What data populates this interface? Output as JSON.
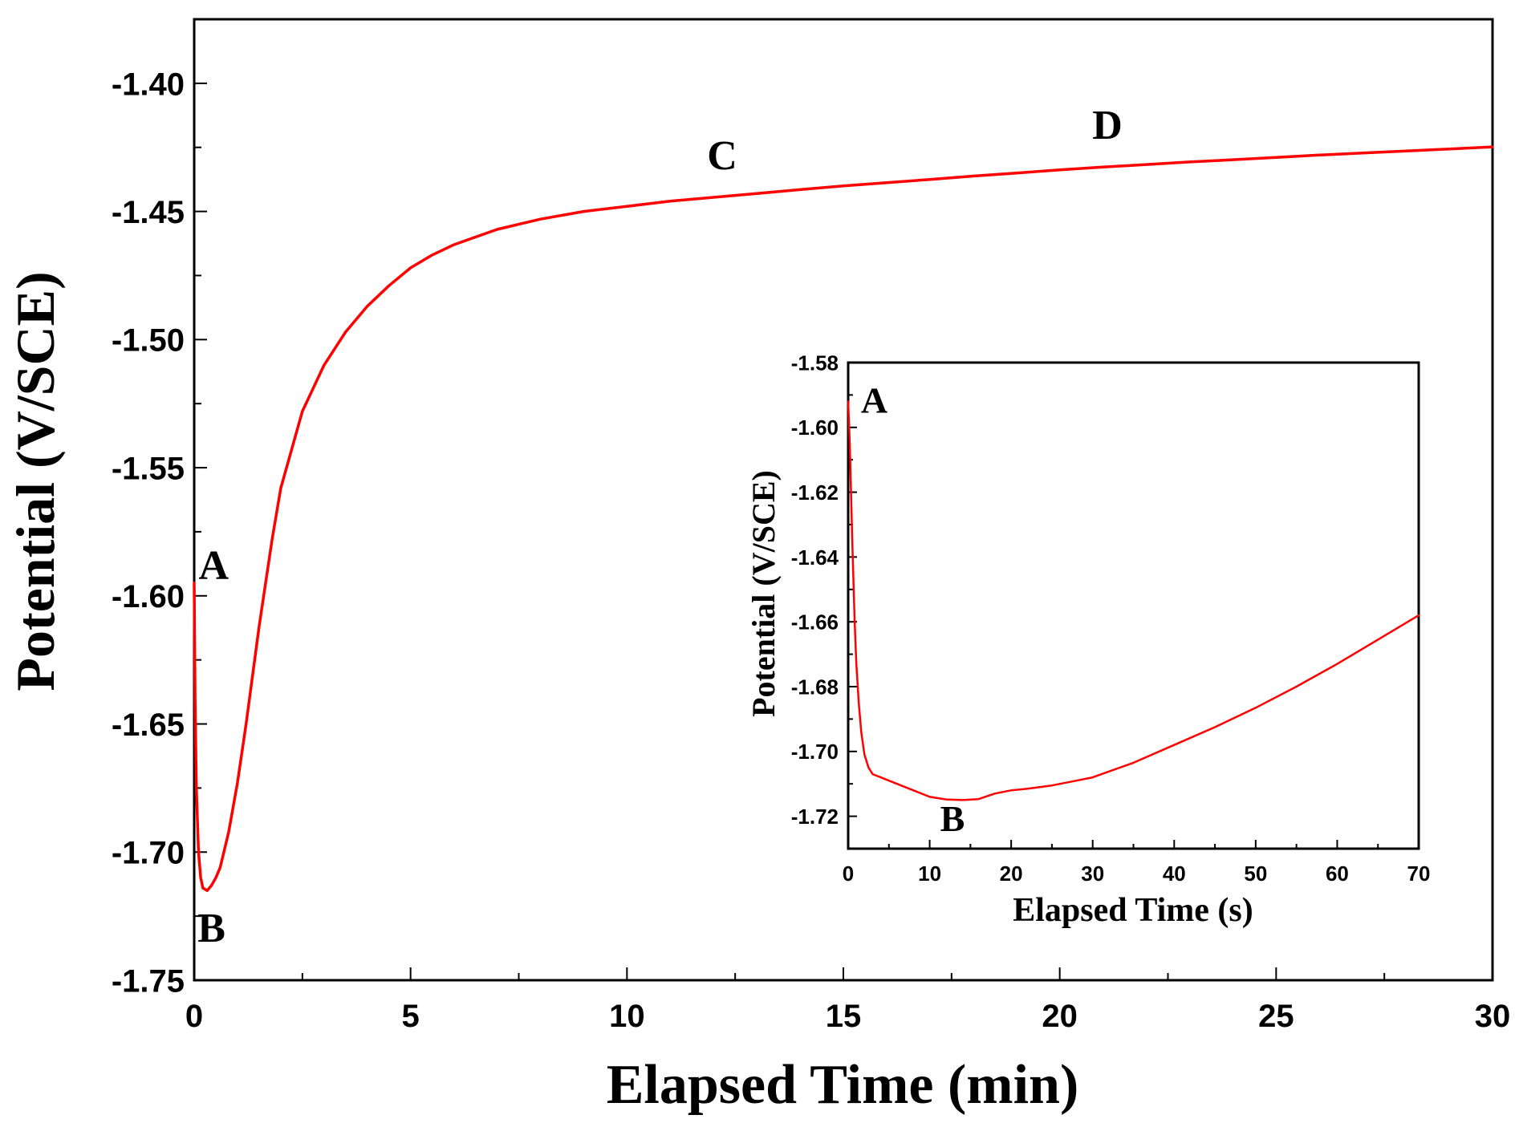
{
  "chart_data": [
    {
      "type": "line",
      "title": "",
      "xlabel": "Elapsed Time (min)",
      "ylabel": "Potential (V/SCE)",
      "xlim": [
        0,
        30
      ],
      "ylim": [
        -1.75,
        -1.375
      ],
      "x_ticks": [
        0,
        5,
        10,
        15,
        20,
        25,
        30
      ],
      "y_ticks": [
        -1.75,
        -1.7,
        -1.65,
        -1.6,
        -1.55,
        -1.5,
        -1.45,
        -1.4
      ],
      "x_tick_labels": [
        "0",
        "5",
        "10",
        "15",
        "20",
        "25",
        "30"
      ],
      "y_tick_labels": [
        "-1.75",
        "-1.70",
        "-1.65",
        "-1.60",
        "-1.55",
        "-1.50",
        "-1.45",
        "-1.40"
      ],
      "color": "#ff0000",
      "series": [
        {
          "name": "potential",
          "x": [
            0,
            0.02,
            0.05,
            0.1,
            0.15,
            0.2,
            0.3,
            0.4,
            0.5,
            0.6,
            0.8,
            1.0,
            1.2,
            1.5,
            1.8,
            2.0,
            2.5,
            3.0,
            3.5,
            4.0,
            4.5,
            5.0,
            5.5,
            6.0,
            6.5,
            7.0,
            7.5,
            8.0,
            9.0,
            10,
            11,
            12,
            13,
            14,
            15,
            16,
            17,
            18,
            19,
            20,
            21,
            22,
            23,
            24,
            25,
            26,
            27,
            28,
            29,
            30
          ],
          "y": [
            -1.595,
            -1.64,
            -1.675,
            -1.7,
            -1.71,
            -1.714,
            -1.715,
            -1.713,
            -1.71,
            -1.706,
            -1.692,
            -1.673,
            -1.65,
            -1.612,
            -1.578,
            -1.558,
            -1.528,
            -1.51,
            -1.497,
            -1.487,
            -1.479,
            -1.472,
            -1.467,
            -1.463,
            -1.46,
            -1.457,
            -1.455,
            -1.453,
            -1.45,
            -1.448,
            -1.446,
            -1.4445,
            -1.443,
            -1.4415,
            -1.44,
            -1.4388,
            -1.4375,
            -1.4362,
            -1.435,
            -1.4338,
            -1.4327,
            -1.4317,
            -1.4307,
            -1.4298,
            -1.4289,
            -1.428,
            -1.4272,
            -1.4264,
            -1.4256,
            -1.4248
          ]
        }
      ],
      "annotations": [
        {
          "text": "A",
          "x": 0.45,
          "y": -1.5935
        },
        {
          "text": "B",
          "x": 0.4,
          "y": -1.735
        },
        {
          "text": "C",
          "x": 12.2,
          "y": -1.4335
        },
        {
          "text": "D",
          "x": 21.1,
          "y": -1.4217
        }
      ]
    },
    {
      "type": "line",
      "title": "",
      "xlabel": "Elapsed Time (s)",
      "ylabel": "Potential (V/SCE)",
      "xlim": [
        0,
        70
      ],
      "ylim": [
        -1.73,
        -1.58
      ],
      "x_ticks": [
        0,
        10,
        20,
        30,
        40,
        50,
        60,
        70
      ],
      "y_ticks": [
        -1.72,
        -1.7,
        -1.68,
        -1.66,
        -1.64,
        -1.62,
        -1.6,
        -1.58
      ],
      "x_tick_labels": [
        "0",
        "10",
        "20",
        "30",
        "40",
        "50",
        "60",
        "70"
      ],
      "y_tick_labels": [
        "-1.72",
        "-1.70",
        "-1.68",
        "-1.66",
        "-1.64",
        "-1.62",
        "-1.60",
        "-1.58"
      ],
      "color": "#ff0000",
      "series": [
        {
          "name": "potential-inset",
          "x": [
            0,
            0.2,
            0.5,
            0.8,
            1.0,
            1.3,
            1.6,
            2.0,
            2.5,
            3.0,
            3.5,
            4.0,
            5.0,
            6.0,
            8.0,
            10,
            12,
            14,
            16,
            18,
            20,
            22,
            25,
            28,
            30,
            35,
            40,
            45,
            50,
            55,
            60,
            65,
            70
          ],
          "y": [
            -1.592,
            -1.605,
            -1.635,
            -1.66,
            -1.673,
            -1.685,
            -1.694,
            -1.701,
            -1.705,
            -1.707,
            -1.7075,
            -1.708,
            -1.709,
            -1.71,
            -1.712,
            -1.714,
            -1.7148,
            -1.715,
            -1.7147,
            -1.713,
            -1.712,
            -1.7115,
            -1.7105,
            -1.709,
            -1.708,
            -1.7035,
            -1.698,
            -1.6925,
            -1.6865,
            -1.68,
            -1.673,
            -1.6655,
            -1.658
          ]
        }
      ],
      "annotations": [
        {
          "text": "A",
          "x": 3.2,
          "y": -1.5955
        },
        {
          "text": "B",
          "x": 12.8,
          "y": -1.7245
        }
      ]
    }
  ]
}
